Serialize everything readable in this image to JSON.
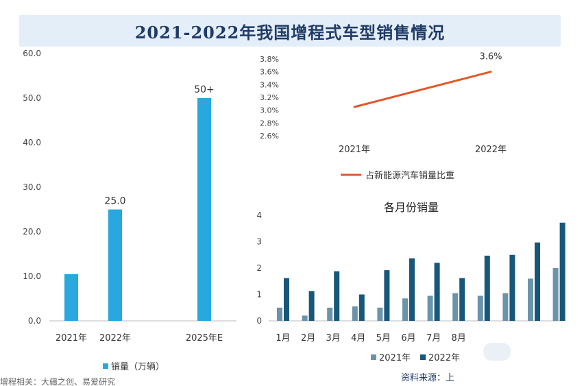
{
  "title": "2021-2022年我国增程式车型销售情况",
  "footer": {
    "left_text": "增程相关：大疆之创、易爱研究",
    "source": "资料来源：上"
  },
  "chart_data": [
    {
      "type": "bar",
      "categories": [
        "2021年",
        "2022年",
        "2025年E"
      ],
      "values": [
        10.5,
        25.0,
        50
      ],
      "data_labels": [
        "",
        "25.0",
        "50+"
      ],
      "y_ticks": [
        "0.0",
        "10.0",
        "20.0",
        "30.0",
        "40.0",
        "50.0",
        "60.0"
      ],
      "ylim": [
        0,
        60
      ],
      "legend": [
        "销量（万辆）"
      ],
      "legend_position": "bottom-left",
      "color": "#29a8e0"
    },
    {
      "type": "line",
      "categories": [
        "2021年",
        "2022年"
      ],
      "values": [
        3.05,
        3.6
      ],
      "data_labels": [
        "",
        "3.6%"
      ],
      "y_ticks": [
        "2.6%",
        "2.8%",
        "3.0%",
        "3.2%",
        "3.4%",
        "3.6%",
        "3.8%"
      ],
      "ylim": [
        2.6,
        3.8
      ],
      "legend": [
        "占新能源汽车销量比重"
      ],
      "legend_position": "bottom",
      "color": "#e0592a"
    },
    {
      "type": "bar",
      "title": "各月份销量",
      "categories": [
        "1月",
        "2月",
        "3月",
        "4月",
        "5月",
        "6月",
        "7月",
        "8月",
        "",
        "",
        "",
        ""
      ],
      "series": [
        {
          "name": "2021年",
          "values": [
            0.5,
            0.2,
            0.5,
            0.55,
            0.5,
            0.85,
            0.95,
            1.05,
            0.95,
            1.05,
            1.6,
            2.0
          ],
          "color": "#6b93aa"
        },
        {
          "name": "2022年",
          "values": [
            1.62,
            1.13,
            1.88,
            1.0,
            1.92,
            2.37,
            2.2,
            1.62,
            2.47,
            2.5,
            2.97,
            3.72
          ],
          "color": "#17577a"
        }
      ],
      "y_ticks": [
        "0",
        "1",
        "2",
        "3",
        "4"
      ],
      "ylim": [
        0,
        4
      ],
      "legend_position": "bottom"
    }
  ]
}
